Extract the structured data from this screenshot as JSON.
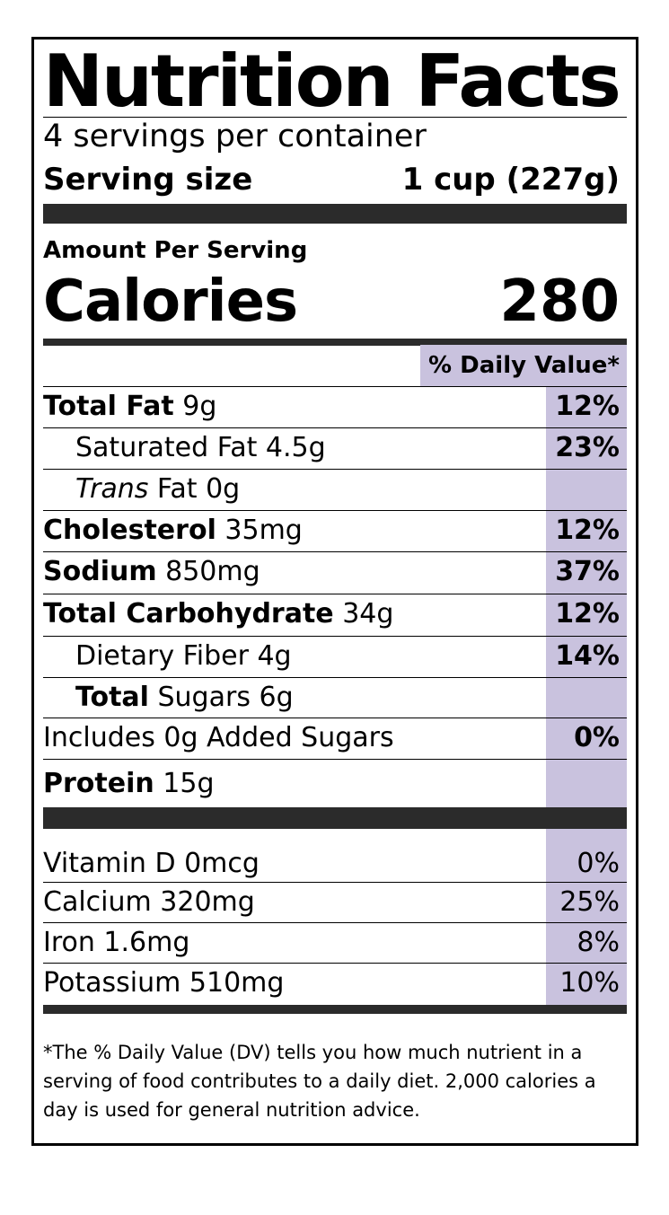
{
  "title": "Nutrition Facts",
  "servings_per_container": "4 servings per container",
  "serving_size": {
    "label": "Serving size",
    "value": "1 cup (227g)"
  },
  "amount_per_serving": "Amount Per Serving",
  "calories": {
    "label": "Calories",
    "value": "280"
  },
  "daily_value_header": "% Daily Value*",
  "nutrients": [
    {
      "name": "Total Fat",
      "amount": " 9g",
      "dv": "12%"
    },
    {
      "name": "Saturated Fat 4.5g",
      "amount": "",
      "dv": "23%"
    },
    {
      "name": "Trans",
      "amount": " Fat 0g",
      "dv": ""
    },
    {
      "name": "Cholesterol",
      "amount": " 35mg",
      "dv": "12%"
    },
    {
      "name": "Sodium",
      "amount": " 850mg",
      "dv": "37%"
    },
    {
      "name": "Total Carbohydrate",
      "amount": " 34g",
      "dv": "12%"
    },
    {
      "name": "Dietary Fiber 4g",
      "amount": "",
      "dv": "14%"
    },
    {
      "name": "Total",
      "amount": " Sugars 6g",
      "dv": ""
    },
    {
      "name": "Includes 0g Added Sugars",
      "amount": "",
      "dv": "0%"
    },
    {
      "name": "Protein",
      "amount": " 15g",
      "dv": ""
    }
  ],
  "vitamins": [
    {
      "name": "Vitamin D 0mcg",
      "dv": "0%"
    },
    {
      "name": "Calcium 320mg",
      "dv": "25%"
    },
    {
      "name": "Iron 1.6mg",
      "dv": "8%"
    },
    {
      "name": "Potassium 510mg",
      "dv": "10%"
    }
  ],
  "footnote": "*The % Daily Value (DV) tells you how much nutrient in a serving of food contributes to a daily diet. 2,000 calories a day is used for general nutrition advice.",
  "colors": {
    "highlight": "#c9c2de",
    "bar": "#2b2b2b"
  }
}
